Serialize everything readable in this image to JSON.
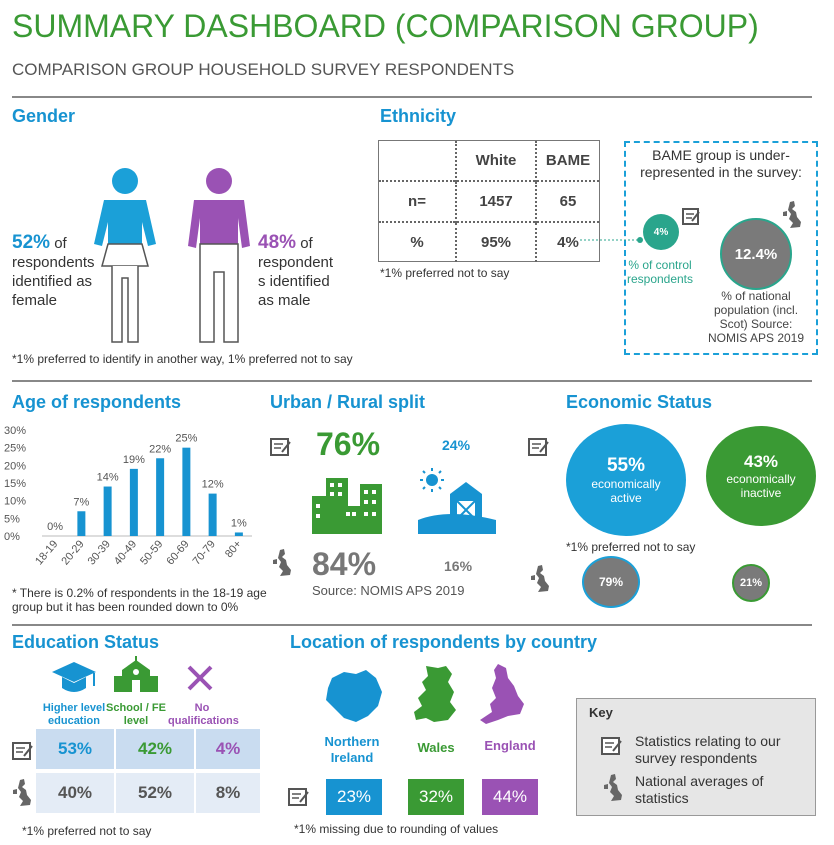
{
  "header": {
    "title": "SUMMARY DASHBOARD (COMPARISON GROUP)",
    "subtitle": "COMPARISON GROUP HOUSEHOLD SURVEY RESPONDENTS"
  },
  "gender": {
    "title": "Gender",
    "female_pct": "52%",
    "female_text1": " of",
    "female_text2": "respondents",
    "female_text3": "identified as",
    "female_text4": "female",
    "male_pct": "48%",
    "male_text1": " of",
    "male_text2": "respondent",
    "male_text3": "s identified",
    "male_text4": "as male",
    "note": "*1% preferred to identify in another way, 1% preferred not to say",
    "colors": {
      "female": "#1ba0d8",
      "male": "#9a52b4"
    }
  },
  "ethnicity": {
    "title": "Ethnicity",
    "headers": [
      "White",
      "BAME"
    ],
    "row_labels": [
      "n=",
      "%"
    ],
    "rows": [
      [
        "1457",
        "65"
      ],
      [
        "95%",
        "4%"
      ]
    ],
    "note": "*1% preferred not to say",
    "callout_title": "BAME group is under-represented in the survey:",
    "control_pct": "4%",
    "control_label": "% of control respondents",
    "national_pct": "12.4%",
    "national_label": "% of national population (incl. Scot) Source: NOMIS APS 2019"
  },
  "chart_data": {
    "type": "bar",
    "title": "Age of respondents",
    "categories": [
      "18-19",
      "20-29",
      "30-39",
      "40-49",
      "50-59",
      "60-69",
      "70-79",
      "80+"
    ],
    "values": [
      0,
      7,
      14,
      19,
      22,
      25,
      12,
      1
    ],
    "labels": [
      "0%",
      "7%",
      "14%",
      "19%",
      "22%",
      "25%",
      "12%",
      "1%"
    ],
    "ylim": [
      0,
      30
    ],
    "yticks": [
      "0%",
      "5%",
      "10%",
      "15%",
      "20%",
      "25%",
      "30%"
    ],
    "color": "#1793d1",
    "grid": false,
    "note": "* There is 0.2% of respondents in the 18-19 age group but it has been rounded down to 0%"
  },
  "urban": {
    "title": "Urban / Rural split",
    "urban_pct": "76%",
    "rural_pct": "24%",
    "nat_urban_pct": "84%",
    "nat_rural_pct": "16%",
    "source": "Source: NOMIS APS 2019"
  },
  "economic": {
    "title": "Economic Status",
    "active_pct": "55%",
    "active_label": "economically active",
    "inactive_pct": "43%",
    "inactive_label": "economically inactive",
    "note": "*1% preferred not to say",
    "nat_active": "79%",
    "nat_inactive": "21%"
  },
  "education": {
    "title": "Education Status",
    "categories": [
      "Higher level education",
      "School / FE level",
      "No qualifications"
    ],
    "survey": [
      "53%",
      "42%",
      "4%"
    ],
    "national": [
      "40%",
      "52%",
      "8%"
    ],
    "note": "*1% preferred not to say"
  },
  "location": {
    "title": "Location of respondents by country",
    "countries": [
      "Northern Ireland",
      "Wales",
      "England"
    ],
    "values": [
      "23%",
      "32%",
      "44%"
    ],
    "colors": [
      "#1793d1",
      "#3a9a34",
      "#9a52b4"
    ],
    "note": "*1% missing due to rounding of values"
  },
  "key": {
    "title": "Key",
    "survey_label": "Statistics relating to our survey respondents",
    "national_label": "National averages of statistics"
  }
}
